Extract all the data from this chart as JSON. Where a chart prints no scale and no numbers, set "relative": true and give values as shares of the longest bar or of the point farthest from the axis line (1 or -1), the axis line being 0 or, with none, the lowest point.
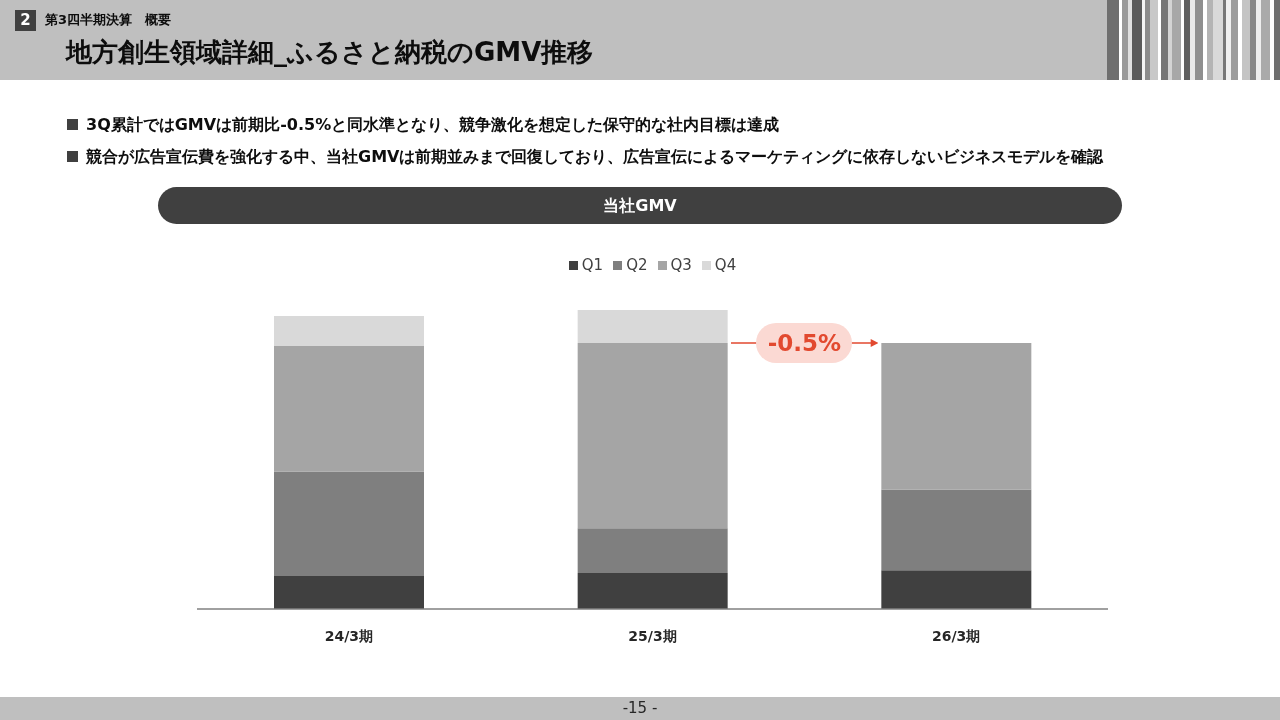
{
  "chart_data": {
    "type": "bar",
    "title": "地方創生領域詳細_ふるさと納税のGMV推移",
    "subtitle": "当社GMV",
    "categories": [
      "24/3期",
      "25/3期",
      "26/3期"
    ],
    "series": [
      {
        "name": "Q1",
        "color": "#404040",
        "values": [
          0.11,
          0.12,
          0.13
        ]
      },
      {
        "name": "Q2",
        "color": "#7f7f7f",
        "values": [
          0.35,
          0.15,
          0.27
        ]
      },
      {
        "name": "Q3",
        "color": "#a5a5a5",
        "values": [
          0.42,
          0.62,
          0.49
        ]
      },
      {
        "name": "Q4",
        "color": "#d9d9d9",
        "values": [
          0.1,
          0.11,
          null
        ]
      }
    ],
    "stacked": true,
    "relative": true,
    "legend": "top",
    "annotations": [
      "2",
      "第3四半期決算　概要",
      "3Q累計ではGMVは前期比-0.5%と同水準となり、競争激化を想定した保守的な社内目標は達成",
      "競合が広告宣伝費を強化する中、当社GMVは前期並みまで回復しており、広告宣伝によるマーケティングに依存しないビジネスモデルを確認",
      "-0.5%",
      "-15 -"
    ]
  }
}
